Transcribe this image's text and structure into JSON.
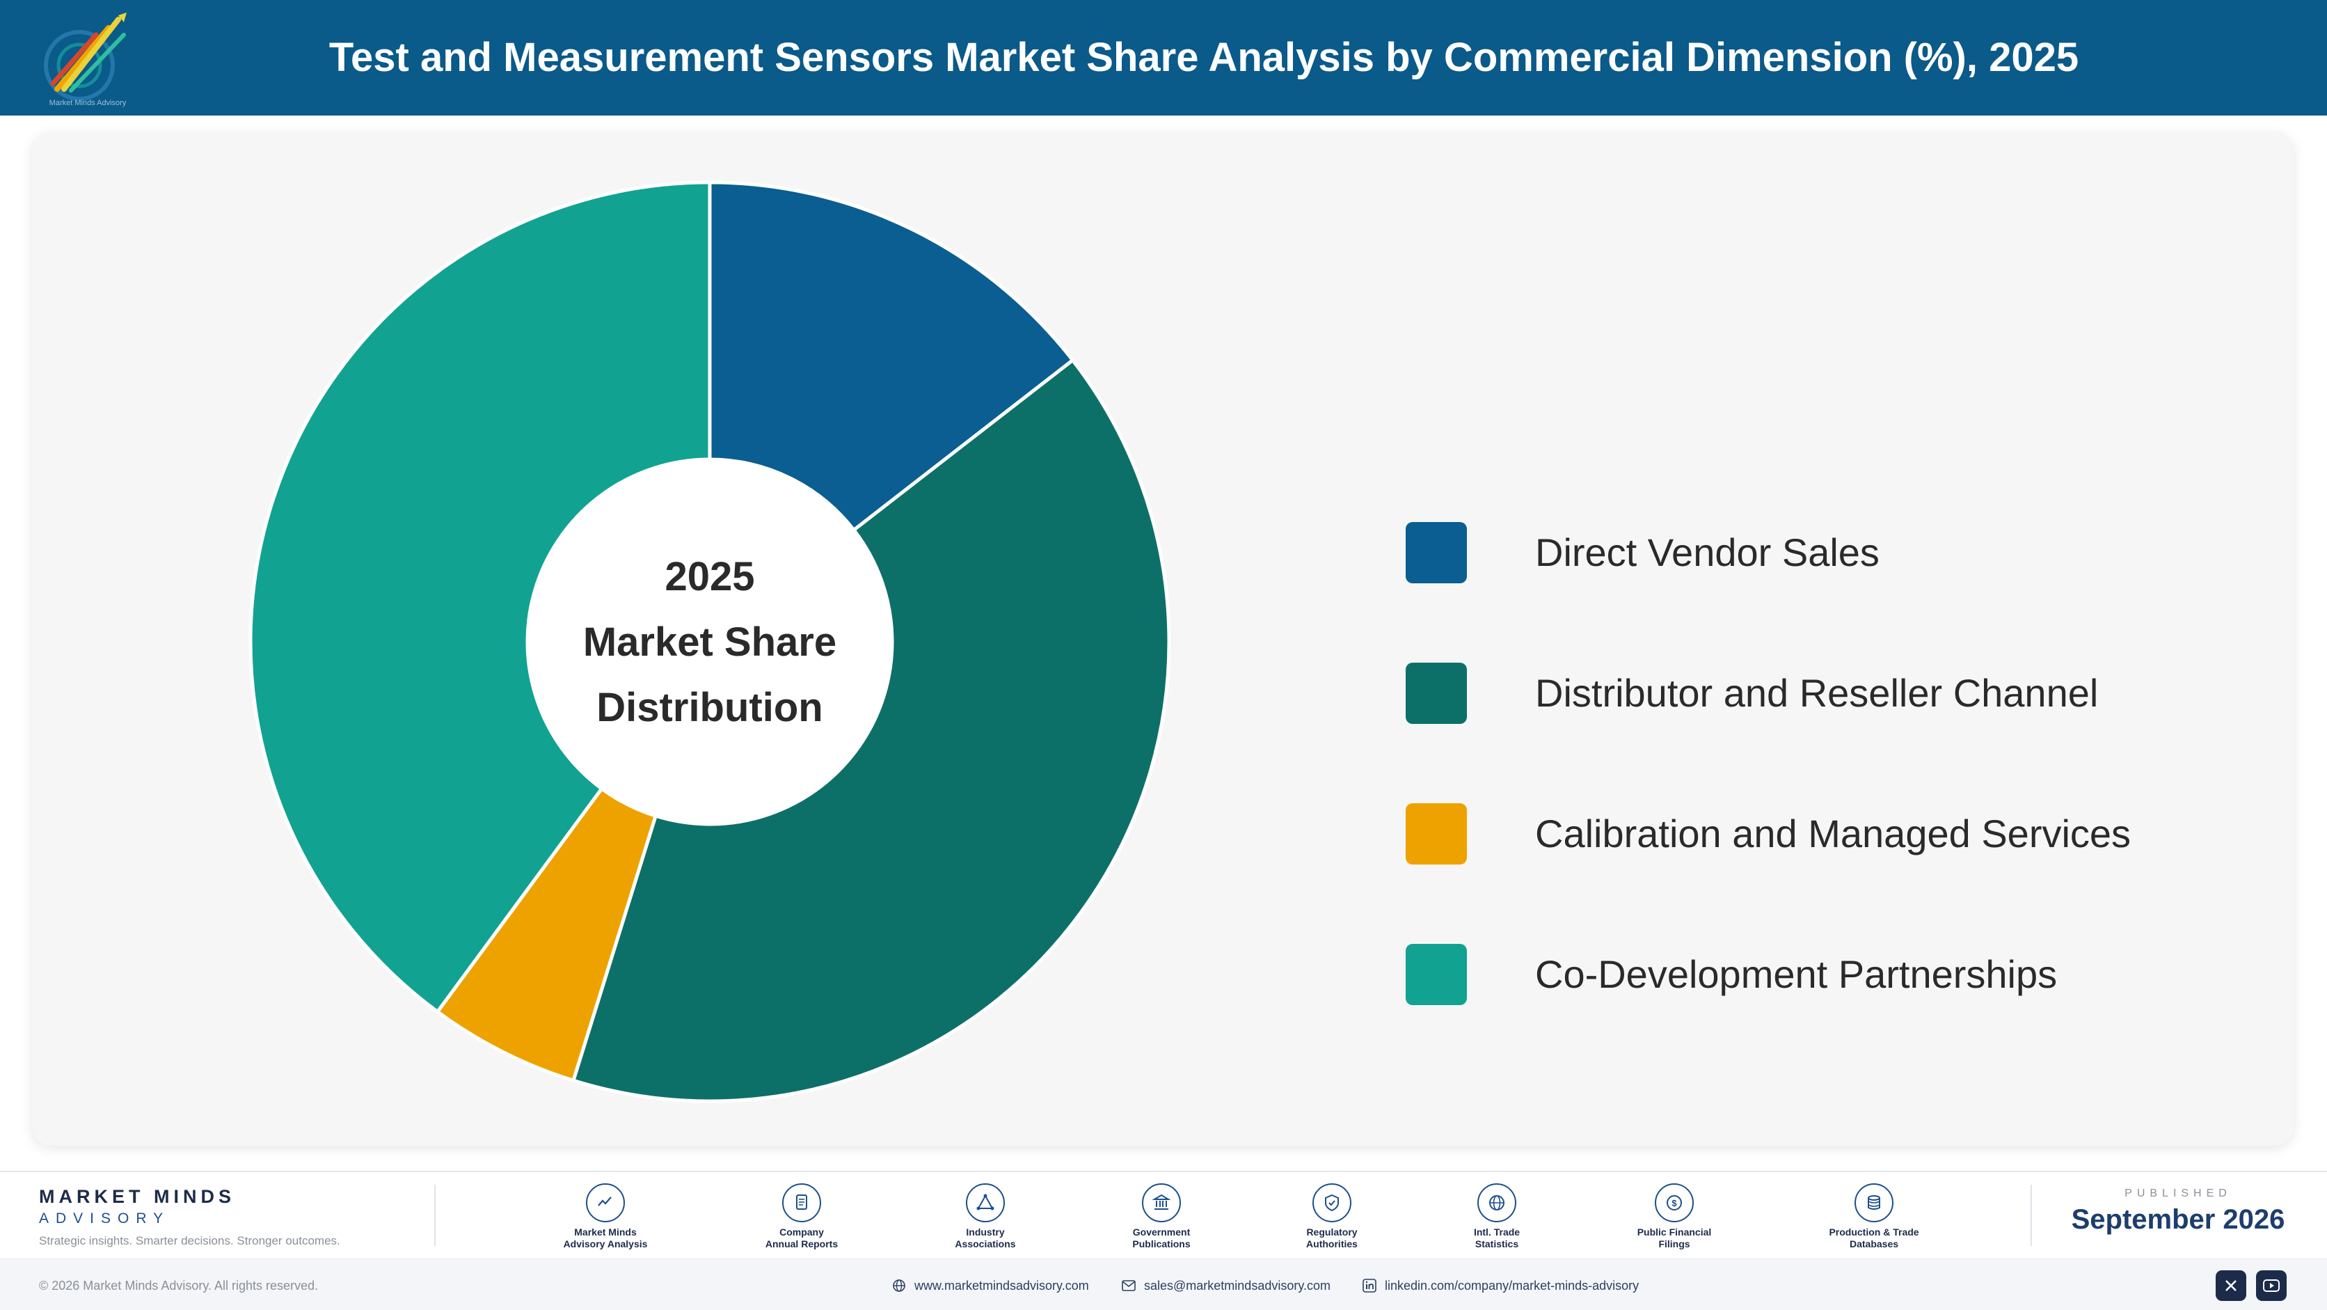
{
  "header": {
    "title": "Test and Measurement Sensors Market Share Analysis by Commercial Dimension (%), 2025",
    "logo_caption": "Market Minds Advisory"
  },
  "chart_data": {
    "type": "pie",
    "title": "Test and Measurement Sensors Market Share Analysis by Commercial Dimension (%), 2025",
    "center_label": [
      "2025",
      "Market Share",
      "Distribution"
    ],
    "categories": [
      "Direct Vendor Sales",
      "Distributor and Reseller Channel",
      "Calibration and Managed Services",
      "Co-Development Partnerships"
    ],
    "values": [
      14.5,
      40.3,
      5.3,
      39.9
    ],
    "unit": "%",
    "colors": [
      "#0a5e91",
      "#0d7068",
      "#eea200",
      "#12a291"
    ],
    "donut": true,
    "legend_position": "right"
  },
  "footer": {
    "brand_name": "MARKET MINDS",
    "brand_sub": "ADVISORY",
    "tagline": "Strategic insights. Smarter decisions. Stronger outcomes.",
    "sources": [
      {
        "line1": "Market Minds",
        "line2": "Advisory Analysis",
        "icon": "trend-chart-icon"
      },
      {
        "line1": "Company",
        "line2": "Annual Reports",
        "icon": "document-icon"
      },
      {
        "line1": "Industry",
        "line2": "Associations",
        "icon": "network-icon"
      },
      {
        "line1": "Government",
        "line2": "Publications",
        "icon": "government-building-icon"
      },
      {
        "line1": "Regulatory",
        "line2": "Authorities",
        "icon": "shield-check-icon"
      },
      {
        "line1": "Intl. Trade",
        "line2": "Statistics",
        "icon": "globe-icon"
      },
      {
        "line1": "Public Financial",
        "line2": "Filings",
        "icon": "coin-icon"
      },
      {
        "line1": "Production & Trade",
        "line2": "Databases",
        "icon": "database-icon"
      }
    ],
    "published_label": "PUBLISHED",
    "published_date": "September 2026",
    "copyright": "© 2026 Market Minds Advisory. All rights reserved.",
    "website": "www.marketmindsadvisory.com",
    "email": "sales@marketmindsadvisory.com",
    "linkedin": "linkedin.com/company/market-minds-advisory",
    "social": [
      "x-icon",
      "youtube-icon"
    ]
  }
}
